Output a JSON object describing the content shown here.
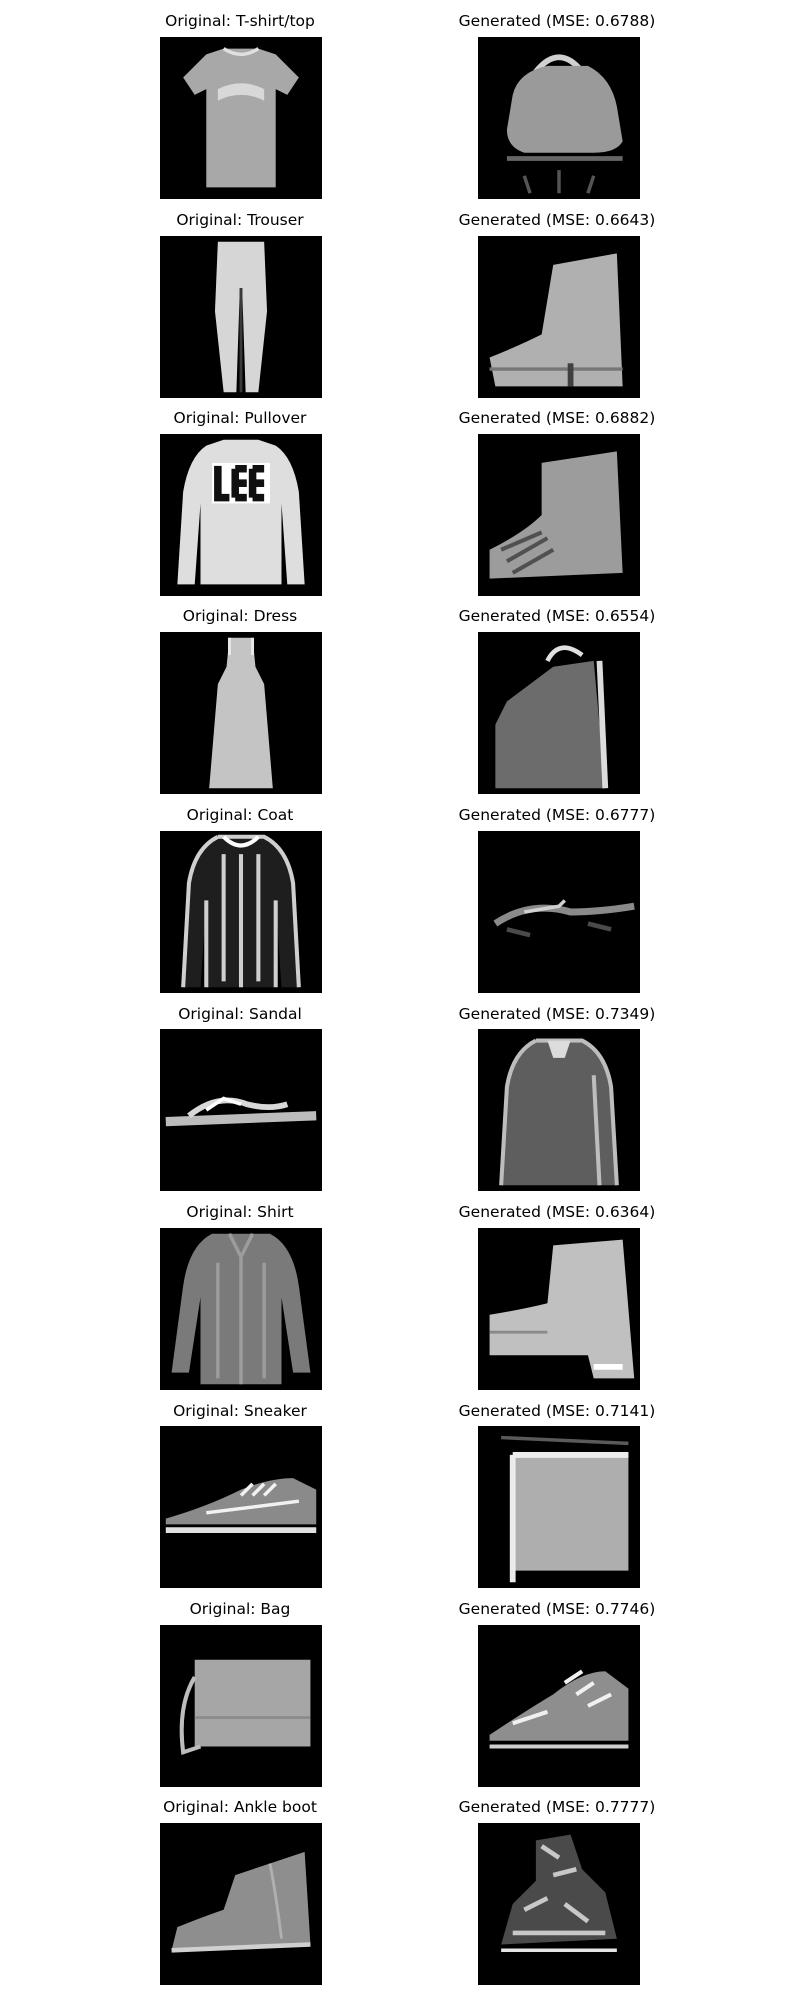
{
  "figure": {
    "rows": [
      {
        "original": {
          "label": "Original: T-shirt/top"
        },
        "generated": {
          "label": "Generated (MSE: 0.6788)"
        }
      },
      {
        "original": {
          "label": "Original: Trouser"
        },
        "generated": {
          "label": "Generated (MSE: 0.6643)"
        }
      },
      {
        "original": {
          "label": "Original: Pullover"
        },
        "generated": {
          "label": "Generated (MSE: 0.6882)"
        }
      },
      {
        "original": {
          "label": "Original: Dress"
        },
        "generated": {
          "label": "Generated (MSE: 0.6554)"
        }
      },
      {
        "original": {
          "label": "Original: Coat"
        },
        "generated": {
          "label": "Generated (MSE: 0.6777)"
        }
      },
      {
        "original": {
          "label": "Original: Sandal"
        },
        "generated": {
          "label": "Generated (MSE: 0.7349)"
        }
      },
      {
        "original": {
          "label": "Original: Shirt"
        },
        "generated": {
          "label": "Generated (MSE: 0.6364)"
        }
      },
      {
        "original": {
          "label": "Original: Sneaker"
        },
        "generated": {
          "label": "Generated (MSE: 0.7141)"
        }
      },
      {
        "original": {
          "label": "Original: Bag"
        },
        "generated": {
          "label": "Generated (MSE: 0.7746)"
        }
      },
      {
        "original": {
          "label": "Original: Ankle boot"
        },
        "generated": {
          "label": "Generated (MSE: 0.7777)"
        }
      }
    ]
  }
}
